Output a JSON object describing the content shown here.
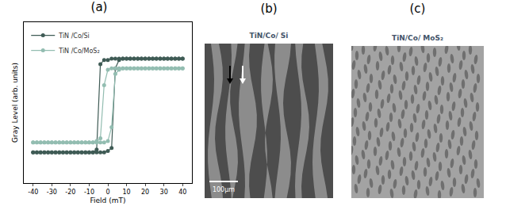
{
  "chart_data": {
    "type": "line",
    "title": "(a)",
    "x_label": "Field (mT)",
    "y_label": "Gray Level (arb. units)",
    "x": [
      -40,
      -38,
      -36,
      -34,
      -32,
      -30,
      -28,
      -26,
      -24,
      -22,
      -20,
      -18,
      -16,
      -14,
      -12,
      -10,
      -8,
      -6,
      -4,
      -2,
      0,
      2,
      4,
      6,
      8,
      10,
      12,
      14,
      16,
      18,
      20,
      22,
      24,
      26,
      28,
      30,
      32,
      34,
      36,
      38,
      40,
      40,
      38,
      36,
      34,
      32,
      30,
      28,
      26,
      24,
      22,
      20,
      18,
      16,
      14,
      12,
      10,
      8,
      6,
      4,
      2,
      0,
      -2,
      -4,
      -6,
      -8,
      -10,
      -12,
      -14,
      -16,
      -18,
      -20,
      -22,
      -24,
      -26,
      -28,
      -30,
      -32,
      -34,
      -36,
      -38,
      -40
    ],
    "series": [
      {
        "name": "TiN /Co/Si",
        "color": "#3f5b55",
        "marker": "circle",
        "line_style": "solid",
        "values": [
          0.22,
          0.22,
          0.22,
          0.22,
          0.22,
          0.22,
          0.22,
          0.22,
          0.22,
          0.22,
          0.22,
          0.22,
          0.22,
          0.22,
          0.22,
          0.22,
          0.22,
          0.22,
          0.22,
          0.22,
          0.23,
          0.25,
          0.82,
          0.88,
          0.89,
          0.89,
          0.89,
          0.89,
          0.89,
          0.89,
          0.89,
          0.89,
          0.89,
          0.89,
          0.89,
          0.89,
          0.89,
          0.89,
          0.89,
          0.89,
          0.89,
          0.89,
          0.89,
          0.89,
          0.89,
          0.89,
          0.89,
          0.89,
          0.89,
          0.89,
          0.89,
          0.89,
          0.89,
          0.89,
          0.89,
          0.89,
          0.89,
          0.89,
          0.89,
          0.89,
          0.89,
          0.88,
          0.88,
          0.85,
          0.24,
          0.22,
          0.22,
          0.22,
          0.22,
          0.22,
          0.22,
          0.22,
          0.22,
          0.22,
          0.22,
          0.22,
          0.22,
          0.22,
          0.22,
          0.22,
          0.22,
          0.22
        ]
      },
      {
        "name": "TiN /Co/MoS₂",
        "color": "#93bdb1",
        "marker": "circle",
        "line_style": "solid",
        "values": [
          0.29,
          0.29,
          0.29,
          0.29,
          0.29,
          0.29,
          0.29,
          0.29,
          0.29,
          0.29,
          0.29,
          0.29,
          0.29,
          0.29,
          0.29,
          0.29,
          0.29,
          0.29,
          0.29,
          0.29,
          0.3,
          0.4,
          0.78,
          0.81,
          0.82,
          0.82,
          0.82,
          0.82,
          0.82,
          0.82,
          0.82,
          0.82,
          0.82,
          0.82,
          0.82,
          0.82,
          0.82,
          0.82,
          0.82,
          0.82,
          0.82,
          0.82,
          0.82,
          0.82,
          0.82,
          0.82,
          0.82,
          0.82,
          0.82,
          0.82,
          0.82,
          0.82,
          0.82,
          0.82,
          0.82,
          0.82,
          0.82,
          0.82,
          0.82,
          0.82,
          0.82,
          0.81,
          0.7,
          0.32,
          0.3,
          0.29,
          0.29,
          0.29,
          0.29,
          0.29,
          0.29,
          0.29,
          0.29,
          0.29,
          0.29,
          0.29,
          0.29,
          0.29,
          0.29,
          0.29,
          0.29,
          0.29
        ]
      }
    ],
    "xlim": [
      -45,
      45
    ],
    "xticks": [
      -40,
      -30,
      -20,
      -10,
      0,
      10,
      20,
      30,
      40
    ],
    "ylim": [
      0,
      1.15
    ],
    "yticks": [],
    "tick_labels": "x",
    "grid": false,
    "legend": "upper left"
  },
  "images": [
    {
      "label": "(b)",
      "title": "TiN/Co/ Si",
      "scale_bar": "100μm"
    },
    {
      "label": "(c)",
      "title": "TiN/Co/ MoS₂"
    }
  ]
}
